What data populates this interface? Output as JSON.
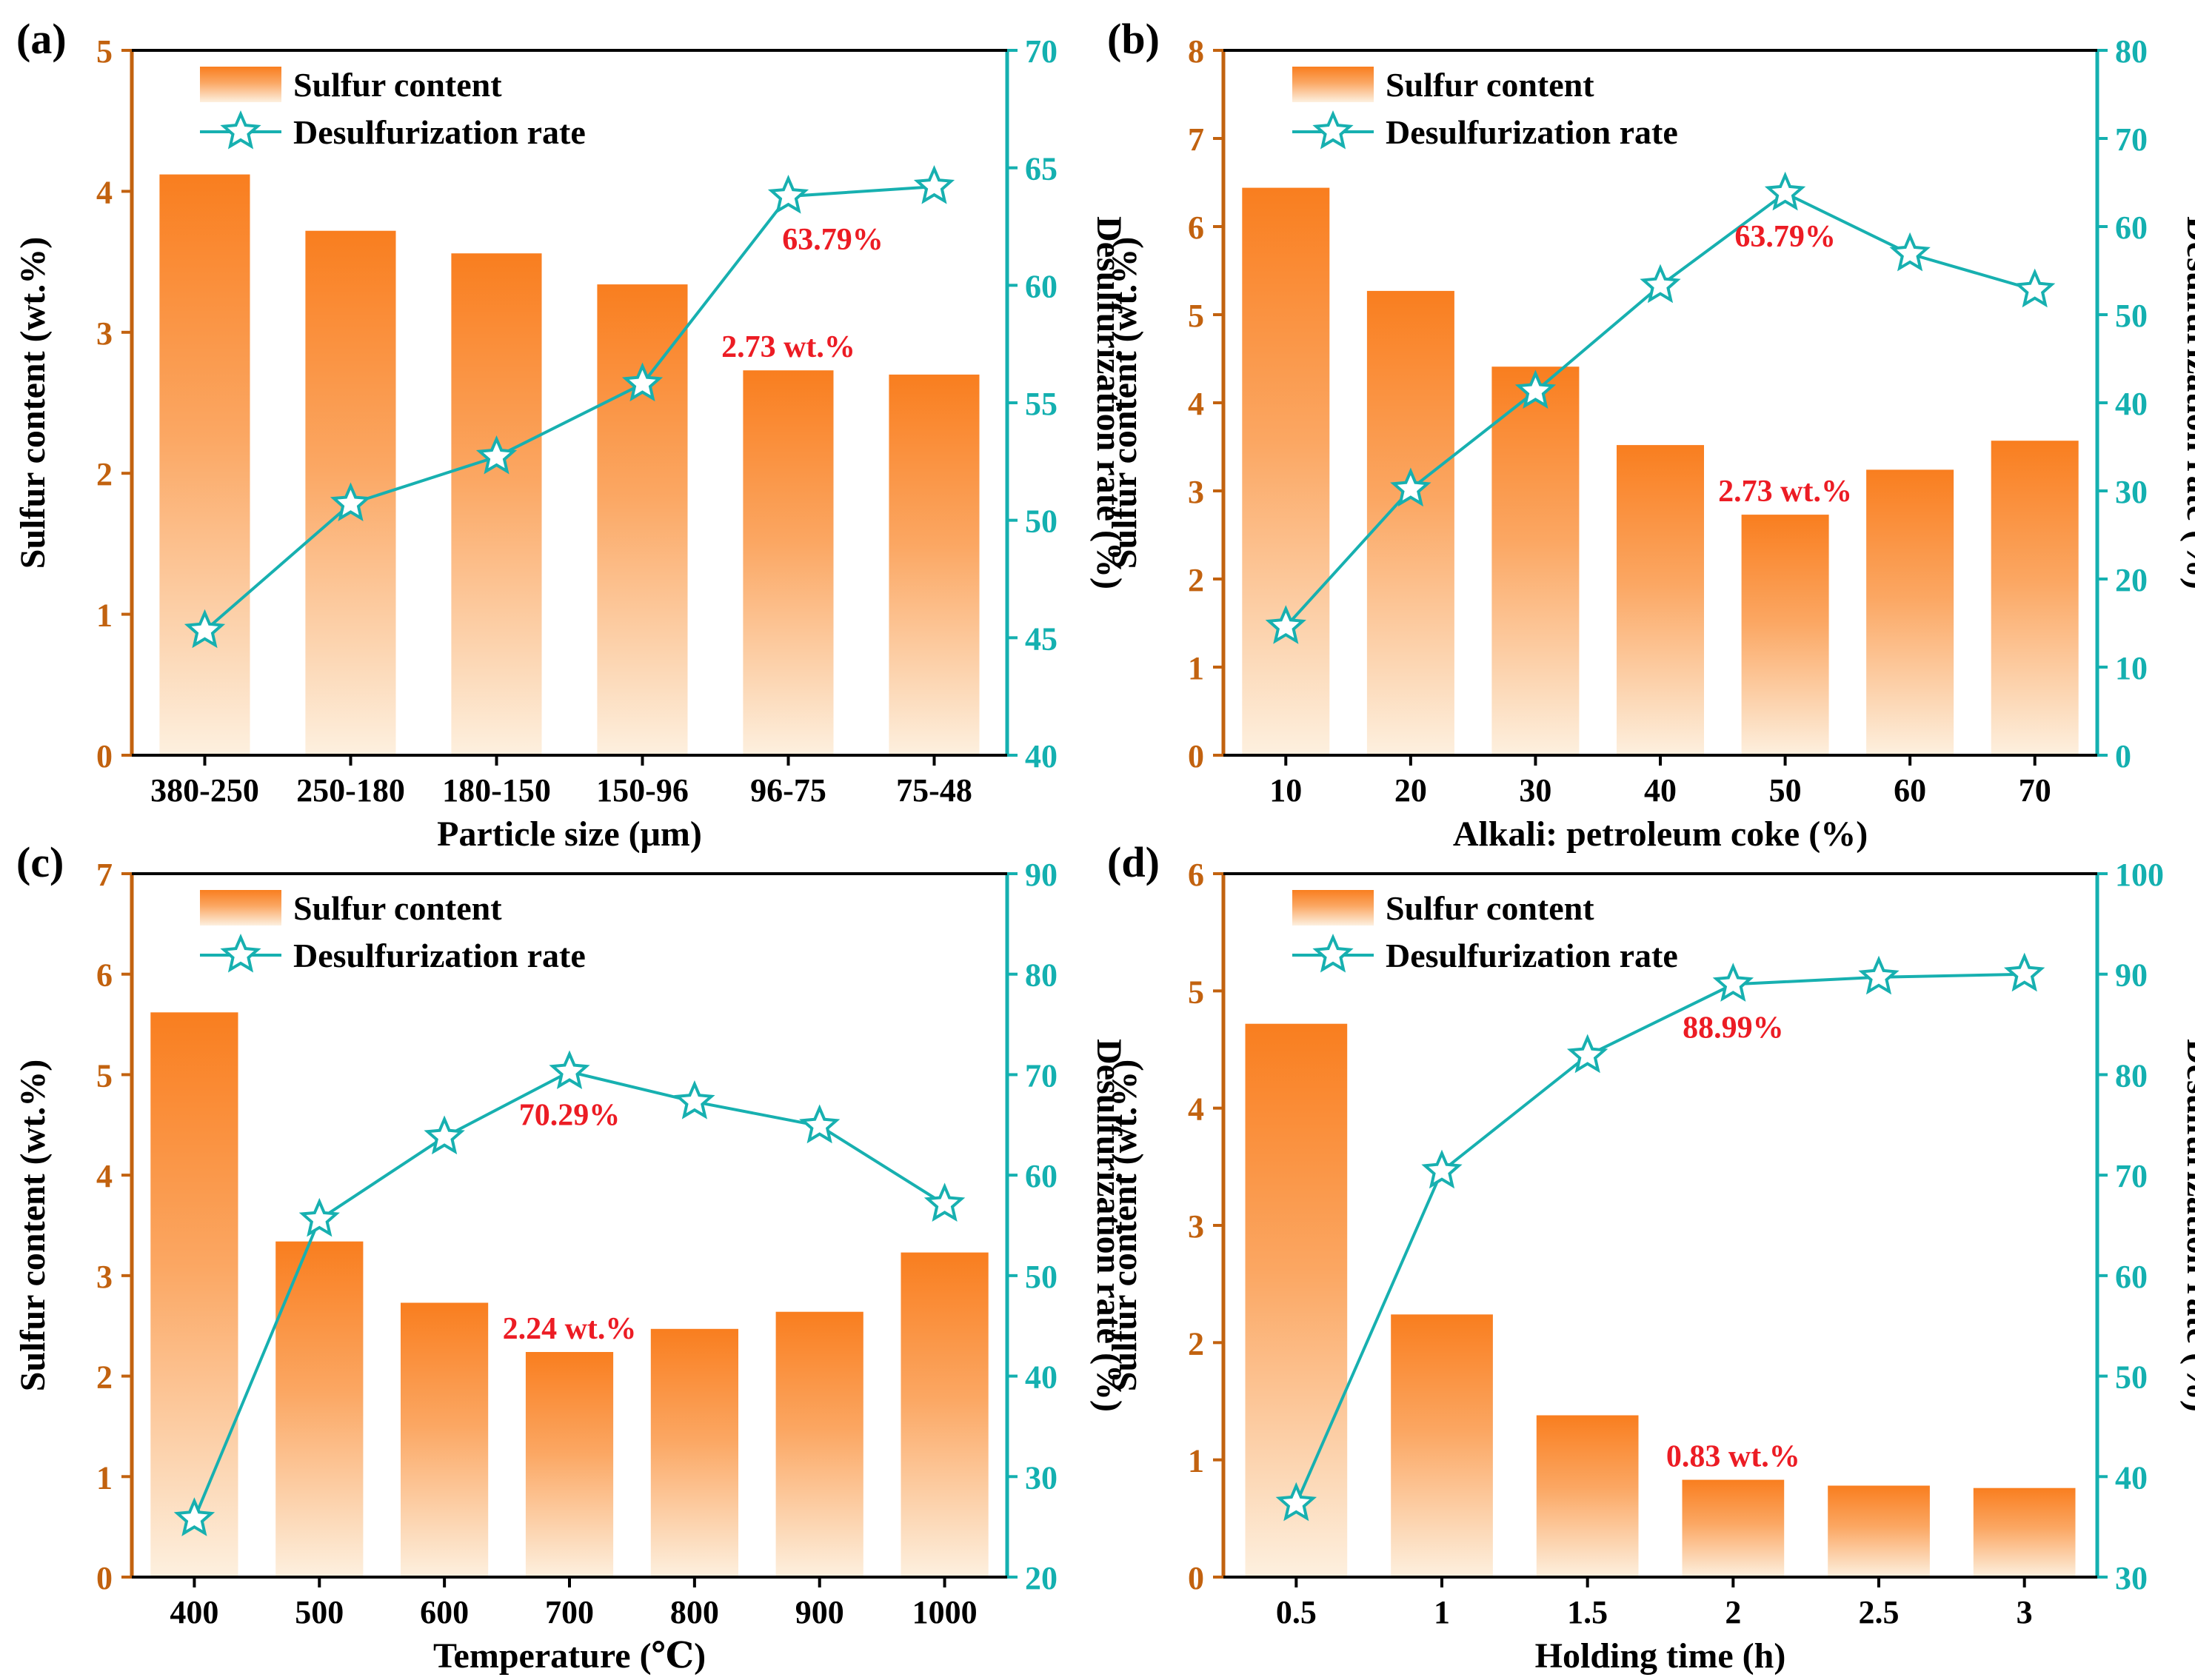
{
  "colors": {
    "bar_top": "#f97e1f",
    "bar_bottom": "#fdf0df",
    "left_axis": "#c2620f",
    "right_axis": "#14b0b0",
    "line": "#17b0b0",
    "annotation": "#ec1c24",
    "text": "#000000"
  },
  "legend": {
    "bar": "Sulfur content",
    "line": "Desulfurization rate"
  },
  "chart_data": [
    {
      "panel": "(a)",
      "type": "bar+line",
      "categories": [
        "380-250",
        "250-180",
        "180-150",
        "150-96",
        "96-75",
        "75-48"
      ],
      "series": [
        {
          "name": "Sulfur content",
          "axis": "left",
          "values": [
            4.12,
            3.72,
            3.56,
            3.34,
            2.73,
            2.7
          ]
        },
        {
          "name": "Desulfurization rate",
          "axis": "right",
          "values": [
            45.3,
            50.7,
            52.7,
            55.8,
            63.79,
            64.2
          ]
        }
      ],
      "xlabel": "Particle size (μm)",
      "ylabel": "Sulfur content (wt.%)",
      "y2label": "Desulfurization rate (%)",
      "ylim": [
        0,
        5
      ],
      "yticks": [
        "0",
        "1",
        "2",
        "3",
        "4",
        "5"
      ],
      "y2lim": [
        40,
        70
      ],
      "y2ticks": [
        "40",
        "45",
        "50",
        "55",
        "60",
        "65",
        "70"
      ],
      "annotations": [
        {
          "text": "63.79%",
          "series": "line",
          "index": 4,
          "where": "below-right"
        },
        {
          "text": "2.73 wt.%",
          "series": "bar",
          "index": 4,
          "where": "above"
        }
      ]
    },
    {
      "panel": "(b)",
      "type": "bar+line",
      "categories": [
        "10",
        "20",
        "30",
        "40",
        "50",
        "60",
        "70"
      ],
      "series": [
        {
          "name": "Sulfur content",
          "axis": "left",
          "values": [
            6.44,
            5.27,
            4.41,
            3.52,
            2.73,
            3.24,
            3.57
          ]
        },
        {
          "name": "Desulfurization rate",
          "axis": "right",
          "values": [
            14.6,
            30.2,
            41.3,
            53.3,
            63.79,
            56.9,
            52.8
          ]
        }
      ],
      "xlabel": "Alkali: petroleum coke (%)",
      "ylabel": "Sulfur content (wt.%)",
      "y2label": "Desulfurization rate (%)",
      "ylim": [
        0,
        8
      ],
      "yticks": [
        "0",
        "1",
        "2",
        "3",
        "4",
        "5",
        "6",
        "7",
        "8"
      ],
      "y2lim": [
        0,
        80
      ],
      "y2ticks": [
        "0",
        "10",
        "20",
        "30",
        "40",
        "50",
        "60",
        "70",
        "80"
      ],
      "annotations": [
        {
          "text": "63.79%",
          "series": "line",
          "index": 4,
          "where": "below"
        },
        {
          "text": "2.73 wt.%",
          "series": "bar",
          "index": 4,
          "where": "above"
        }
      ]
    },
    {
      "panel": "(c)",
      "type": "bar+line",
      "categories": [
        "400",
        "500",
        "600",
        "700",
        "800",
        "900",
        "1000"
      ],
      "series": [
        {
          "name": "Sulfur content",
          "axis": "left",
          "values": [
            5.62,
            3.34,
            2.73,
            2.24,
            2.47,
            2.64,
            3.23
          ]
        },
        {
          "name": "Desulfurization rate",
          "axis": "right",
          "values": [
            25.8,
            55.6,
            63.8,
            70.29,
            67.3,
            64.9,
            57.1
          ]
        }
      ],
      "xlabel": "Temperature (℃)",
      "ylabel": "Sulfur content (wt.%)",
      "y2label": "Desulfurization rate (%)",
      "ylim": [
        0,
        7
      ],
      "yticks": [
        "0",
        "1",
        "2",
        "3",
        "4",
        "5",
        "6",
        "7"
      ],
      "y2lim": [
        20,
        90
      ],
      "y2ticks": [
        "20",
        "30",
        "40",
        "50",
        "60",
        "70",
        "80",
        "90"
      ],
      "annotations": [
        {
          "text": "70.29%",
          "series": "line",
          "index": 3,
          "where": "below"
        },
        {
          "text": "2.24 wt.%",
          "series": "bar",
          "index": 3,
          "where": "above"
        }
      ]
    },
    {
      "panel": "(d)",
      "type": "bar+line",
      "categories": [
        "0.5",
        "1",
        "1.5",
        "2",
        "2.5",
        "3"
      ],
      "series": [
        {
          "name": "Sulfur content",
          "axis": "left",
          "values": [
            4.72,
            2.24,
            1.38,
            0.83,
            0.78,
            0.76
          ]
        },
        {
          "name": "Desulfurization rate",
          "axis": "right",
          "values": [
            37.3,
            70.4,
            81.9,
            88.99,
            89.7,
            90.0
          ]
        }
      ],
      "xlabel": "Holding time (h)",
      "ylabel": "Sulfur content (wt.%)",
      "y2label": "Desulfurization rate (%)",
      "ylim": [
        0,
        6
      ],
      "yticks": [
        "0",
        "1",
        "2",
        "3",
        "4",
        "5",
        "6"
      ],
      "y2lim": [
        30,
        100
      ],
      "y2ticks": [
        "30",
        "40",
        "50",
        "60",
        "70",
        "80",
        "90",
        "100"
      ],
      "annotations": [
        {
          "text": "88.99%",
          "series": "line",
          "index": 3,
          "where": "below"
        },
        {
          "text": "0.83 wt.%",
          "series": "bar",
          "index": 3,
          "where": "above"
        }
      ]
    }
  ]
}
